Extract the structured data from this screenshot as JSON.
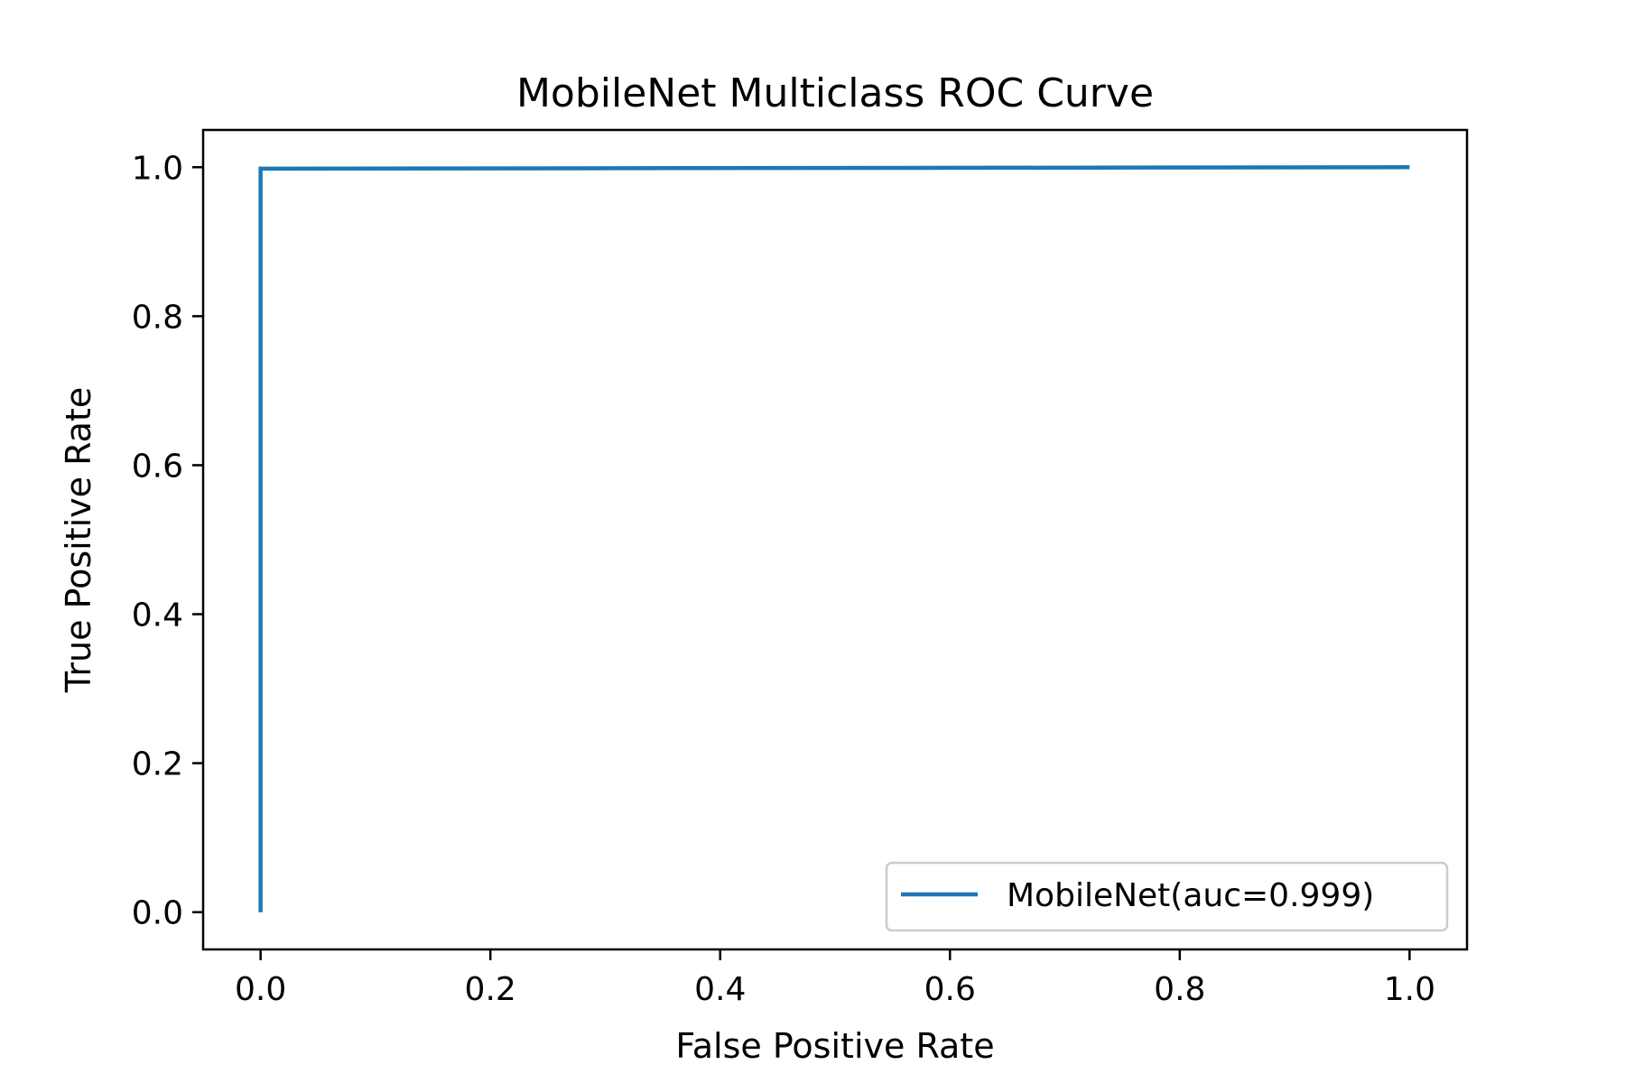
{
  "chart_data": {
    "type": "line",
    "title": "MobileNet Multiclass ROC Curve",
    "xlabel": "False Positive Rate",
    "ylabel": "True Positive Rate",
    "xlim": [
      -0.05,
      1.05
    ],
    "ylim": [
      -0.05,
      1.05
    ],
    "xticks": [
      0.0,
      0.2,
      0.4,
      0.6,
      0.8,
      1.0
    ],
    "yticks": [
      0.0,
      0.2,
      0.4,
      0.6,
      0.8,
      1.0
    ],
    "xtick_labels": [
      "0.0",
      "0.2",
      "0.4",
      "0.6",
      "0.8",
      "1.0"
    ],
    "ytick_labels": [
      "0.0",
      "0.2",
      "0.4",
      "0.6",
      "0.8",
      "1.0"
    ],
    "grid": false,
    "legend_position": "lower-right",
    "series": [
      {
        "name": "MobileNet(auc=0.999)",
        "color": "#1f77b4",
        "x": [
          0.0,
          0.0,
          0.002,
          1.0
        ],
        "y": [
          0.0,
          0.998,
          0.998,
          1.0
        ]
      }
    ]
  }
}
